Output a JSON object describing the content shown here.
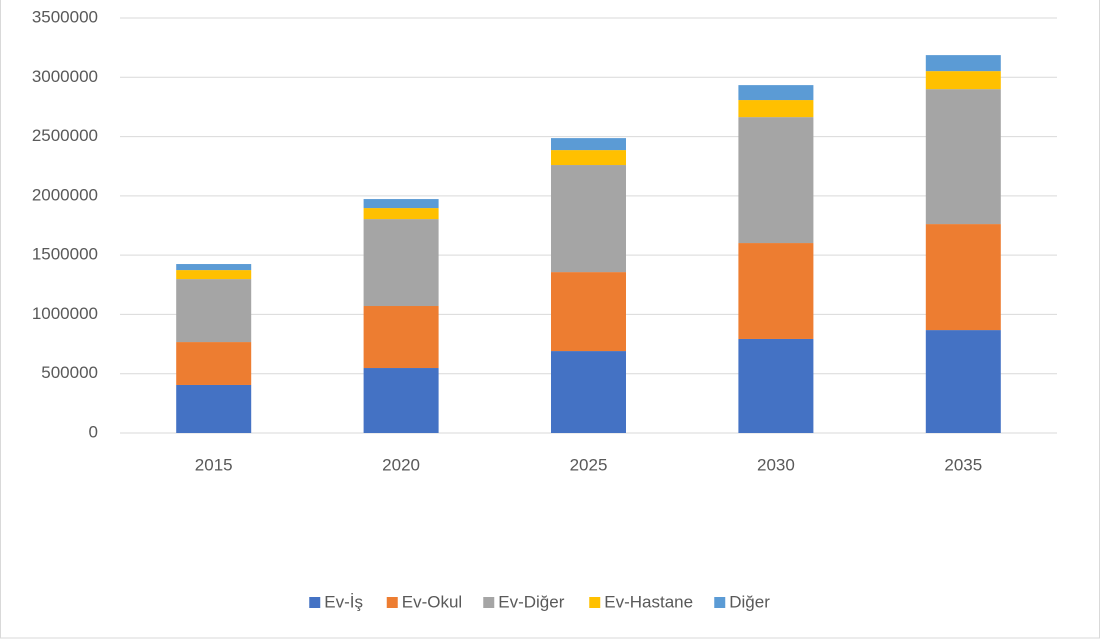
{
  "chart_data": {
    "type": "stacked_bar",
    "categories": [
      "2015",
      "2020",
      "2025",
      "2030",
      "2035"
    ],
    "series": [
      {
        "name": "Ev-İş",
        "color": "#4472c4",
        "values": [
          405000,
          548000,
          691000,
          793000,
          868000
        ]
      },
      {
        "name": "Ev-Okul",
        "color": "#ed7d31",
        "values": [
          362000,
          523000,
          666000,
          809000,
          894000
        ]
      },
      {
        "name": "Ev-Diğer",
        "color": "#a5a5a5",
        "values": [
          531000,
          733000,
          903000,
          1062000,
          1138000
        ]
      },
      {
        "name": "Ev-Hastane",
        "color": "#ffc000",
        "values": [
          76000,
          93000,
          126000,
          144000,
          152000
        ]
      },
      {
        "name": "Diğer",
        "color": "#5b9bd5",
        "values": [
          51000,
          76000,
          101000,
          126000,
          135000
        ]
      }
    ],
    "ylim": [
      0,
      3500000
    ],
    "yticks": [
      0,
      500000,
      1000000,
      1500000,
      2000000,
      2500000,
      3000000,
      3500000
    ],
    "grid": true,
    "legend": "bottom"
  }
}
